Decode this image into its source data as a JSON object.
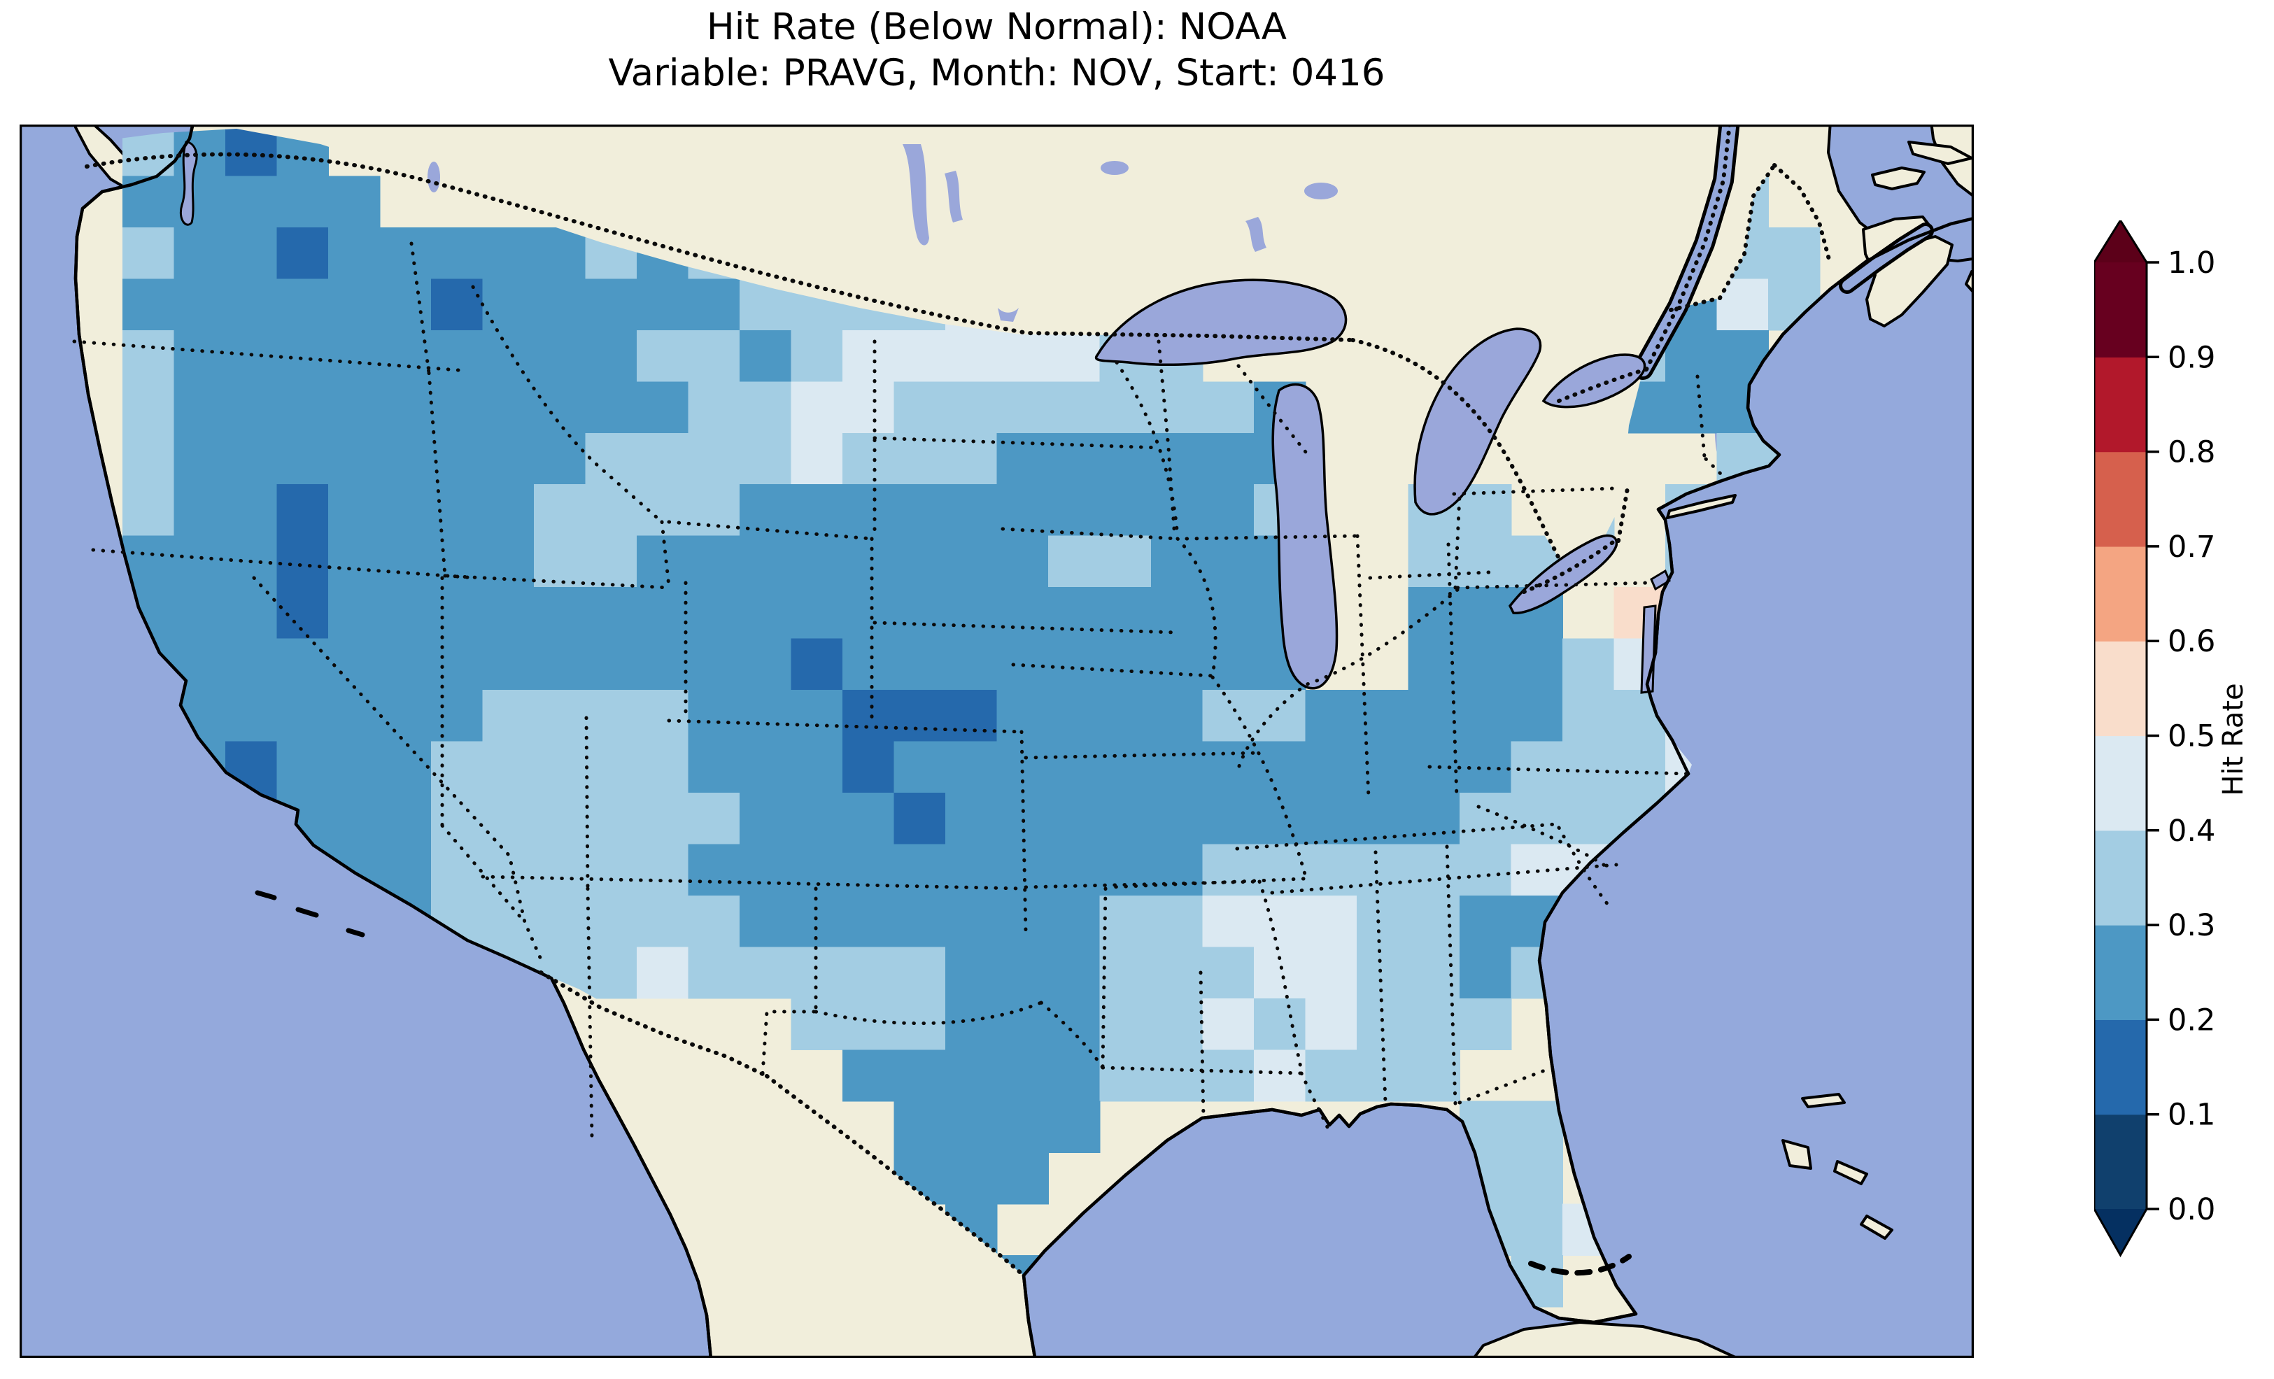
{
  "title": {
    "line1": "Hit Rate (Below Normal): NOAA",
    "line2": "Variable: PRAVG, Month: NOV, Start: 0416"
  },
  "colorbar": {
    "label": "Hit Rate",
    "ticks": [
      "1.0",
      "0.9",
      "0.8",
      "0.7",
      "0.6",
      "0.5",
      "0.4",
      "0.3",
      "0.2",
      "0.1",
      "0.0"
    ],
    "segments_bottom_to_top": [
      {
        "range": "0.0-0.1",
        "color": "#10406d"
      },
      {
        "range": "0.1-0.2",
        "color": "#2569ac"
      },
      {
        "range": "0.2-0.3",
        "color": "#4d98c4"
      },
      {
        "range": "0.3-0.4",
        "color": "#a3cde3"
      },
      {
        "range": "0.4-0.5",
        "color": "#dbe9f2"
      },
      {
        "range": "0.5-0.6",
        "color": "#f9ddcb"
      },
      {
        "range": "0.6-0.7",
        "color": "#f4a582"
      },
      {
        "range": "0.7-0.8",
        "color": "#d6604d"
      },
      {
        "range": "0.8-0.9",
        "color": "#b2182b"
      },
      {
        "range": "0.9-1.0",
        "color": "#67001f"
      }
    ],
    "under_arrow_color": "#053061",
    "over_arrow_color": "#5c0019"
  },
  "map_style": {
    "ocean_color": "#94a9dc",
    "lake_color": "#9aa7da",
    "land_color": "#f1eedb",
    "coast_color": "#000000"
  },
  "chart_data": {
    "type": "heatmap",
    "title": "Hit Rate (Below Normal): NOAA",
    "subtitle": "Variable: PRAVG, Month: NOV, Start: 0416",
    "model": "NOAA",
    "variable": "PRAVG",
    "month": "NOV",
    "start": "0416",
    "metric": "Hit Rate (Below Normal)",
    "region": "Contiguous United States (lon ~ -125..-66, lat ~ 24..50)",
    "colorbar_label": "Hit Rate",
    "colorbar_range": [
      0.0,
      1.0
    ],
    "colorbar_bin_width": 0.1,
    "legend_note": "Grid of forecast hit-rate values over CONUS; almost all values fall between 0.1 and 0.6, dominated by 0.2-0.3 blues; one 0.5-0.6 peach patch near Chesapeake Bay (MD/DE).",
    "value_bins": {
      ".": null,
      "2": {
        "value": 0.15,
        "range": "0.1-0.2",
        "color": "#2569ac"
      },
      "3": {
        "value": 0.25,
        "range": "0.2-0.3",
        "color": "#4d98c4"
      },
      "4": {
        "value": 0.35,
        "range": "0.3-0.4",
        "color": "#a3cde3"
      },
      "5": {
        "value": 0.45,
        "range": "0.4-0.5",
        "color": "#dbe9f2"
      },
      "6": {
        "value": 0.55,
        "range": "0.5-0.6",
        "color": "#f9ddcb"
      }
    },
    "grid": {
      "cols": 38,
      "rows": 24,
      "rows_data": [
        "..4323................................",
        "..33333..........................4....",
        "..4332333334344................4444...",
        "..33333323333344445554.........3354...",
        "..433333333344345555544........433....",
        "..43333333333445544444443......3333...",
        "..43333333344445444333333........44...",
        "..43323333444433333333334..44.4.44....",
        "..33323333443333333344333..444..44....",
        "..33323333333333333333333..333.65.....",
        "..33333333333332333333333..333455.....",
        "..4333333444433322233334433333445.....",
        "..3323334444433323333333333334445.....",
        "..3323334444443332333333333344444.....",
        ".....333444443333333333444444554......",
        ".....33344444433333334455544334.......",
        "........4444544444333444554434........",
        "...............44433344545444.........",
        "................333334445444..........",
        ".................3333.......44........",
        ".................333........44........",
        "..................3.........445.......",
        "...................3.........4........",
        "......................................"
      ]
    }
  }
}
